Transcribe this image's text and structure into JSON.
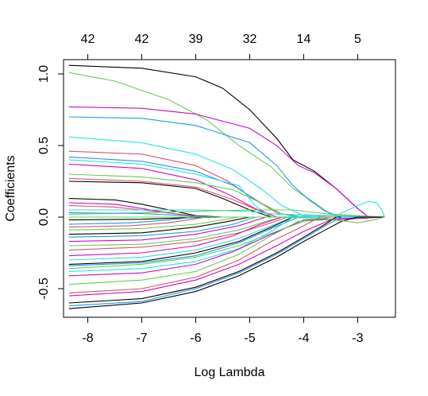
{
  "chart_data": {
    "type": "line",
    "title": "",
    "xlabel": "Log Lambda",
    "ylabel": "Coefficients",
    "xlim": [
      -8.45,
      -2.3
    ],
    "ylim": [
      -0.7,
      1.1
    ],
    "x_ticks": [
      -8,
      -7,
      -6,
      -5,
      -4,
      -3
    ],
    "x_tick_labels": [
      "-8",
      "-7",
      "-6",
      "-5",
      "-4",
      "-3"
    ],
    "y_ticks": [
      -0.5,
      0.0,
      0.5,
      1.0
    ],
    "y_tick_labels": [
      "-0.5",
      "0.0",
      "0.5",
      "1.0"
    ],
    "top_ticks": [
      -8,
      -7,
      -6,
      -5,
      -4,
      -3
    ],
    "top_tick_labels": [
      "42",
      "42",
      "39",
      "32",
      "14",
      "5"
    ],
    "grid": false,
    "legend": "none",
    "palette": [
      "#000000",
      "#DF536B",
      "#61D04F",
      "#2297E6",
      "#28E2E5",
      "#CD0BBC"
    ],
    "series": [
      {
        "color": "#000000",
        "x": [
          -8.35,
          -7,
          -6,
          -5.5,
          -5,
          -4.5,
          -4.2,
          -3.8,
          -3.4,
          -3.0,
          -2.8,
          -2.5
        ],
        "y": [
          1.06,
          1.04,
          0.98,
          0.9,
          0.75,
          0.55,
          0.4,
          0.32,
          0.2,
          0.06,
          0,
          0
        ]
      },
      {
        "color": "#61D04F",
        "x": [
          -8.35,
          -7.5,
          -6.5,
          -5.8,
          -5.2,
          -4.6,
          -4.2,
          -3.8,
          -3.5,
          -2.5
        ],
        "y": [
          1.01,
          0.95,
          0.82,
          0.68,
          0.5,
          0.35,
          0.2,
          0.1,
          0.02,
          0
        ]
      },
      {
        "color": "#CD0BBC",
        "x": [
          -8.35,
          -7,
          -6,
          -5,
          -4.5,
          -4.1,
          -3.8,
          -3.4,
          -3.0,
          -2.8,
          -2.5
        ],
        "y": [
          0.77,
          0.76,
          0.72,
          0.62,
          0.5,
          0.36,
          0.31,
          0.2,
          0.06,
          0,
          0
        ]
      },
      {
        "color": "#2297E6",
        "x": [
          -8.35,
          -7,
          -6,
          -5,
          -4.5,
          -4.2,
          -3.9,
          -3.6,
          -3.3,
          -2.5
        ],
        "y": [
          0.7,
          0.69,
          0.64,
          0.52,
          0.36,
          0.22,
          0.12,
          0.04,
          0,
          0
        ]
      },
      {
        "color": "#28E2E5",
        "x": [
          -8.35,
          -7,
          -6,
          -5.3,
          -4.8,
          -4.4,
          -4.0,
          -3.6,
          -2.5
        ],
        "y": [
          0.56,
          0.52,
          0.44,
          0.33,
          0.2,
          0.08,
          0.01,
          0,
          0
        ]
      },
      {
        "color": "#DF536B",
        "x": [
          -8.35,
          -7,
          -6,
          -5.4,
          -4.9,
          -4.5,
          -4.1,
          -2.5
        ],
        "y": [
          0.46,
          0.44,
          0.36,
          0.25,
          0.12,
          0.03,
          0,
          0
        ]
      },
      {
        "color": "#2297E6",
        "x": [
          -8.35,
          -7,
          -6,
          -5.3,
          -4.8,
          -4.4,
          -4.0,
          -2.5
        ],
        "y": [
          0.42,
          0.39,
          0.32,
          0.22,
          0.1,
          0.02,
          0,
          0
        ]
      },
      {
        "color": "#28E2E5",
        "x": [
          -8.35,
          -7,
          -6,
          -5.5,
          -5.2,
          -4.9,
          -4.6,
          -2.5
        ],
        "y": [
          0.4,
          0.37,
          0.3,
          0.25,
          0.22,
          0.08,
          0,
          0
        ]
      },
      {
        "color": "#CD0BBC",
        "x": [
          -8.35,
          -7,
          -6,
          -5.4,
          -4.9,
          -4.5,
          -2.5
        ],
        "y": [
          0.37,
          0.34,
          0.26,
          0.16,
          0.06,
          0,
          0
        ]
      },
      {
        "color": "#61D04F",
        "x": [
          -8.35,
          -7,
          -6,
          -5.3,
          -4.8,
          -4.4,
          -2.5
        ],
        "y": [
          0.3,
          0.28,
          0.24,
          0.19,
          0.1,
          0.02,
          0
        ]
      },
      {
        "color": "#DF536B",
        "x": [
          -8.35,
          -7,
          -6,
          -5.3,
          -4.8,
          -4.5,
          -2.5
        ],
        "y": [
          0.27,
          0.25,
          0.21,
          0.12,
          0.04,
          0,
          0
        ]
      },
      {
        "color": "#000000",
        "x": [
          -8.35,
          -7,
          -6,
          -5.5,
          -5.0,
          -4.6,
          -2.5
        ],
        "y": [
          0.25,
          0.24,
          0.2,
          0.13,
          0.05,
          0,
          0
        ]
      },
      {
        "color": "#000000",
        "x": [
          -8.35,
          -7.5,
          -7,
          -6.5,
          -6,
          -5.5,
          -2.5
        ],
        "y": [
          0.13,
          0.12,
          0.09,
          0.05,
          0.01,
          0,
          0
        ]
      },
      {
        "color": "#CD0BBC",
        "x": [
          -8.35,
          -7.5,
          -7,
          -6.5,
          -6,
          -2.5
        ],
        "y": [
          0.1,
          0.09,
          0.06,
          0.03,
          0,
          0
        ]
      },
      {
        "color": "#DF536B",
        "x": [
          -8.35,
          -7.5,
          -7,
          -6.3,
          -5.8,
          -2.5
        ],
        "y": [
          0.08,
          0.07,
          0.05,
          0.02,
          0,
          0
        ]
      },
      {
        "color": "#28E2E5",
        "x": [
          -8.35,
          -7,
          -6,
          -5,
          -4.5,
          -2.5
        ],
        "y": [
          0.05,
          0.05,
          0.05,
          0.04,
          0.02,
          0
        ]
      },
      {
        "color": "#61D04F",
        "x": [
          -8.35,
          -7,
          -6,
          -5,
          -4.2,
          -3.5,
          -2.5
        ],
        "y": [
          0.02,
          0.03,
          0.04,
          0.05,
          0.05,
          0.02,
          0
        ]
      },
      {
        "color": "#2297E6",
        "x": [
          -8.35,
          -7,
          -6.2,
          -5.6,
          -2.5
        ],
        "y": [
          0.03,
          0.025,
          0.01,
          0,
          0
        ]
      },
      {
        "color": "#000000",
        "x": [
          -8.35,
          -7,
          -6.2,
          -5.5,
          -2.5
        ],
        "y": [
          -0.02,
          -0.015,
          -0.005,
          0,
          0
        ]
      },
      {
        "color": "#2297E6",
        "x": [
          -8.35,
          -7.2,
          -6.5,
          -6,
          -2.5
        ],
        "y": [
          -0.05,
          -0.04,
          -0.02,
          0,
          0
        ]
      },
      {
        "color": "#DF536B",
        "x": [
          -8.35,
          -7.2,
          -6.5,
          -5.8,
          -2.5
        ],
        "y": [
          -0.07,
          -0.06,
          -0.04,
          0,
          0
        ]
      },
      {
        "color": "#61D04F",
        "x": [
          -8.35,
          -7,
          -6,
          -5.2,
          -2.5
        ],
        "y": [
          -0.09,
          -0.08,
          -0.05,
          0,
          0
        ]
      },
      {
        "color": "#000000",
        "x": [
          -8.35,
          -7,
          -6,
          -5.4,
          -5.0,
          -2.5
        ],
        "y": [
          -0.12,
          -0.11,
          -0.07,
          -0.03,
          0,
          0
        ]
      },
      {
        "color": "#2297E6",
        "x": [
          -8.35,
          -7,
          -6,
          -5.3,
          -4.9,
          -2.5
        ],
        "y": [
          -0.14,
          -0.13,
          -0.1,
          -0.05,
          0,
          0
        ]
      },
      {
        "color": "#CD0BBC",
        "x": [
          -8.35,
          -7,
          -6,
          -5.2,
          -4.7,
          -2.5
        ],
        "y": [
          -0.17,
          -0.16,
          -0.12,
          -0.06,
          0,
          0
        ]
      },
      {
        "color": "#61D04F",
        "x": [
          -8.35,
          -7,
          -6,
          -5.2,
          -4.7,
          -4.4,
          -2.5
        ],
        "y": [
          -0.2,
          -0.19,
          -0.15,
          -0.09,
          -0.03,
          0,
          0
        ]
      },
      {
        "color": "#DF536B",
        "x": [
          -8.35,
          -7,
          -6,
          -5.2,
          -4.6,
          -4.3,
          -2.5
        ],
        "y": [
          -0.23,
          -0.21,
          -0.17,
          -0.11,
          -0.04,
          0,
          0
        ]
      },
      {
        "color": "#CD0BBC",
        "x": [
          -8.35,
          -7,
          -6,
          -5.3,
          -4.8,
          -4.4,
          -2.5
        ],
        "y": [
          -0.27,
          -0.25,
          -0.2,
          -0.13,
          -0.05,
          0,
          0
        ]
      },
      {
        "color": "#28E2E5",
        "x": [
          -8.35,
          -7,
          -6,
          -5.2,
          -4.6,
          -4.2,
          -2.5
        ],
        "y": [
          -0.3,
          -0.28,
          -0.23,
          -0.15,
          -0.06,
          0,
          0
        ]
      },
      {
        "color": "#000000",
        "x": [
          -8.35,
          -7,
          -6,
          -5.2,
          -4.6,
          -4.2,
          -2.5
        ],
        "y": [
          -0.33,
          -0.31,
          -0.25,
          -0.17,
          -0.07,
          0,
          0
        ]
      },
      {
        "color": "#2297E6",
        "x": [
          -8.35,
          -7,
          -6,
          -5.2,
          -4.6,
          -4.1,
          -2.5
        ],
        "y": [
          -0.34,
          -0.32,
          -0.27,
          -0.18,
          -0.08,
          0,
          0
        ]
      },
      {
        "color": "#61D04F",
        "x": [
          -8.35,
          -7,
          -6,
          -5.2,
          -4.5,
          -4.0,
          -3.5,
          -2.5
        ],
        "y": [
          -0.36,
          -0.33,
          -0.28,
          -0.2,
          -0.1,
          -0.03,
          0,
          0
        ]
      },
      {
        "color": "#28E2E5",
        "x": [
          -8.35,
          -7,
          -6,
          -5.2,
          -4.6,
          -4.2,
          -2.5
        ],
        "y": [
          -0.38,
          -0.36,
          -0.31,
          -0.22,
          -0.1,
          0,
          0
        ]
      },
      {
        "color": "#CD0BBC",
        "x": [
          -8.35,
          -7,
          -6,
          -5.3,
          -4.6,
          -4.0,
          -2.5
        ],
        "y": [
          -0.41,
          -0.39,
          -0.33,
          -0.24,
          -0.12,
          -0.02,
          0
        ]
      },
      {
        "color": "#61D04F",
        "x": [
          -8.35,
          -7,
          -6,
          -5.2,
          -4.6,
          -4.1,
          -2.5
        ],
        "y": [
          -0.47,
          -0.44,
          -0.38,
          -0.26,
          -0.13,
          -0.03,
          0
        ]
      },
      {
        "color": "#DF536B",
        "x": [
          -8.35,
          -7,
          -6,
          -5.2,
          -4.6,
          -4.1,
          -3.7,
          -2.5
        ],
        "y": [
          -0.53,
          -0.5,
          -0.42,
          -0.3,
          -0.17,
          -0.08,
          0,
          0
        ]
      },
      {
        "color": "#CD0BBC",
        "x": [
          -8.35,
          -7,
          -6,
          -5.2,
          -4.5,
          -4.0,
          -3.5,
          -2.5
        ],
        "y": [
          -0.55,
          -0.52,
          -0.44,
          -0.33,
          -0.2,
          -0.1,
          -0.02,
          0
        ]
      },
      {
        "color": "#000000",
        "x": [
          -8.35,
          -7,
          -6,
          -5.2,
          -4.5,
          -4.0,
          -3.6,
          -3.4,
          -2.5
        ],
        "y": [
          -0.6,
          -0.57,
          -0.49,
          -0.38,
          -0.25,
          -0.14,
          -0.05,
          0,
          0
        ]
      },
      {
        "color": "#2297E6",
        "x": [
          -8.35,
          -7,
          -6,
          -5.2,
          -4.5,
          -4.0,
          -3.6,
          -3.3,
          -2.5
        ],
        "y": [
          -0.62,
          -0.59,
          -0.5,
          -0.39,
          -0.26,
          -0.15,
          -0.06,
          0,
          0
        ]
      },
      {
        "color": "#000000",
        "x": [
          -8.35,
          -7,
          -6,
          -5.2,
          -4.5,
          -4.0,
          -3.6,
          -3.3,
          -3.0,
          -2.5
        ],
        "y": [
          -0.64,
          -0.6,
          -0.52,
          -0.41,
          -0.28,
          -0.17,
          -0.09,
          -0.03,
          0,
          0
        ]
      },
      {
        "color": "#28E2E5",
        "x": [
          -8.35,
          -4.5,
          -3.4,
          -3.0,
          -2.8,
          -2.65,
          -2.55,
          -2.5
        ],
        "y": [
          0,
          0,
          0.01,
          0.08,
          0.11,
          0.1,
          0.05,
          0
        ]
      },
      {
        "color": "#61D04F",
        "x": [
          -8.35,
          -4.5,
          -3.6,
          -3.0,
          -2.7,
          -2.5
        ],
        "y": [
          0,
          0,
          -0.01,
          -0.04,
          -0.02,
          0
        ]
      }
    ]
  }
}
